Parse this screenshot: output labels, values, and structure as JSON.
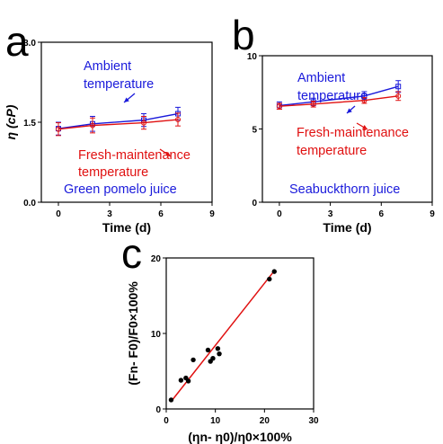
{
  "chart_data": [
    {
      "panel": "a",
      "type": "line",
      "x": [
        0,
        2,
        5,
        7
      ],
      "series": [
        {
          "name": "Ambient temperature",
          "color": "#1a1adb",
          "values": [
            1.38,
            1.47,
            1.54,
            1.66
          ],
          "err": [
            0.12,
            0.14,
            0.12,
            0.12
          ]
        },
        {
          "name": "Fresh-maintenance temperature",
          "color": "#e01010",
          "values": [
            1.37,
            1.44,
            1.49,
            1.55
          ],
          "err": [
            0.12,
            0.14,
            0.12,
            0.12
          ]
        }
      ],
      "xlim": [
        -1,
        9
      ],
      "ylim": [
        0,
        3
      ],
      "xticks": [
        "0",
        "3",
        "6",
        "9"
      ],
      "yticks": [
        "0.0",
        "1.5",
        "3.0"
      ],
      "xlabel": "Time (d)",
      "ylabel": "η (cP)",
      "annotations": [
        {
          "text": "Ambient",
          "color": "#1a1adb"
        },
        {
          "text": "temperature",
          "color": "#1a1adb"
        },
        {
          "text": "Fresh-maintenance",
          "color": "#e01010"
        },
        {
          "text": "temperature",
          "color": "#e01010"
        },
        {
          "text": "Green pomelo juice",
          "color": "#1a1adb"
        }
      ]
    },
    {
      "panel": "b",
      "type": "line",
      "x": [
        0,
        2,
        5,
        7
      ],
      "series": [
        {
          "name": "Ambient temperature",
          "color": "#1a1adb",
          "values": [
            6.6,
            6.85,
            7.25,
            7.9
          ],
          "err": [
            0.25,
            0.25,
            0.3,
            0.4
          ]
        },
        {
          "name": "Fresh-maintenance temperature",
          "color": "#e01010",
          "values": [
            6.55,
            6.7,
            6.95,
            7.25
          ],
          "err": [
            0.2,
            0.2,
            0.2,
            0.3
          ]
        }
      ],
      "xlim": [
        -1,
        9
      ],
      "ylim": [
        0,
        10
      ],
      "xticks": [
        "0",
        "3",
        "6",
        "9"
      ],
      "yticks": [
        "0",
        "5",
        "10"
      ],
      "xlabel": "Time (d)",
      "annotations": [
        {
          "text": "Ambient",
          "color": "#1a1adb"
        },
        {
          "text": "temperature",
          "color": "#1a1adb"
        },
        {
          "text": "Fresh-maintenance",
          "color": "#e01010"
        },
        {
          "text": "temperature",
          "color": "#e01010"
        },
        {
          "text": "Seabuckthorn juice",
          "color": "#1a1adb"
        }
      ]
    },
    {
      "panel": "c",
      "type": "scatter",
      "points": [
        [
          1,
          1.2
        ],
        [
          3,
          3.8
        ],
        [
          4,
          4.1
        ],
        [
          4.5,
          3.7
        ],
        [
          5.5,
          6.5
        ],
        [
          8.5,
          7.8
        ],
        [
          9,
          6.3
        ],
        [
          9.5,
          6.7
        ],
        [
          10.5,
          8.0
        ],
        [
          10.8,
          7.3
        ],
        [
          21,
          17.2
        ],
        [
          22,
          18.2
        ]
      ],
      "fit_line": {
        "x": [
          1,
          22
        ],
        "y": [
          1.0,
          18.3
        ],
        "color": "#e01010"
      },
      "xlim": [
        0,
        30
      ],
      "ylim": [
        0,
        20
      ],
      "xticks": [
        "0",
        "10",
        "20",
        "30"
      ],
      "yticks": [
        "0",
        "10",
        "20"
      ],
      "xlabel": "(ηn- η0)/η0×100%",
      "ylabel": "(Fn- F0)/F0×100%"
    }
  ],
  "panel_letters": {
    "a": "a",
    "b": "b",
    "c": "c"
  }
}
